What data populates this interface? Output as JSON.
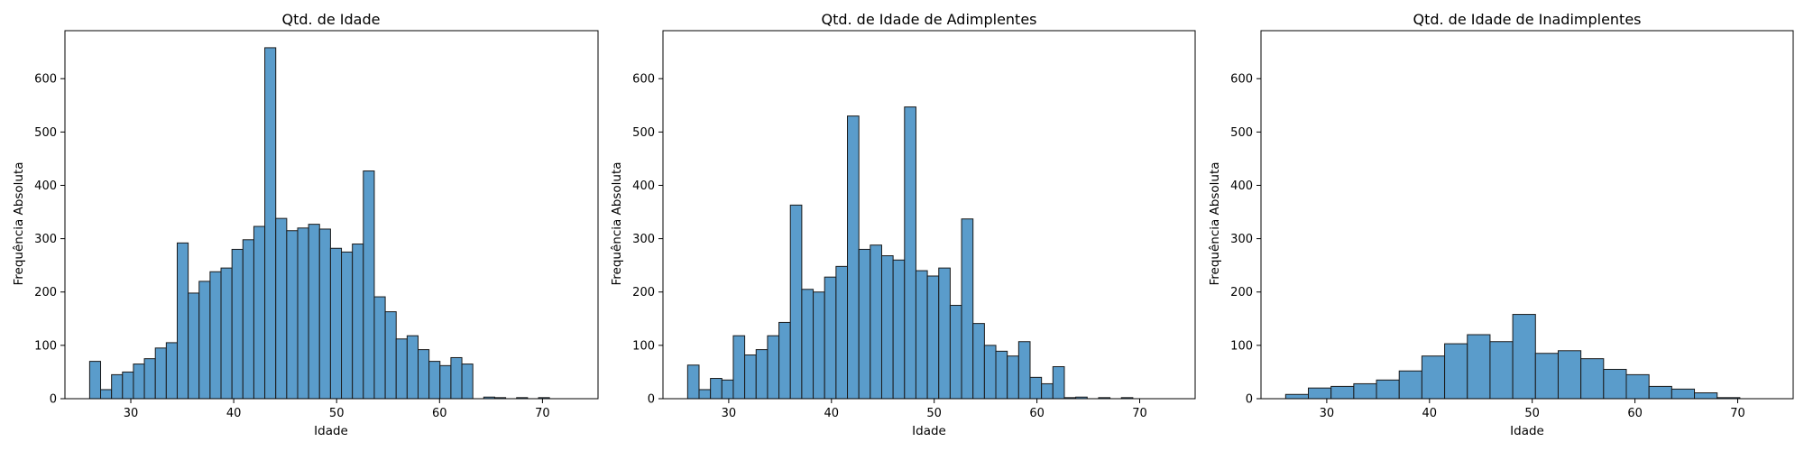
{
  "colors": {
    "bar_fill": "#5a9ccb",
    "bar_edge": "#1a1a1a",
    "axis": "#000000",
    "background": "#ffffff"
  },
  "chart_data": [
    {
      "type": "bar",
      "title": "Qtd. de Idade",
      "xlabel": "Idade",
      "ylabel": "Frequência Absoluta",
      "xlim": [
        23.6,
        75.4
      ],
      "ylim": [
        0,
        690
      ],
      "xticks": [
        30,
        40,
        50,
        60,
        70
      ],
      "yticks": [
        0,
        100,
        200,
        300,
        400,
        500,
        600
      ],
      "bin_start": 26.0,
      "bin_width": 1.0638,
      "values": [
        70,
        17,
        45,
        50,
        65,
        75,
        95,
        105,
        292,
        198,
        220,
        238,
        245,
        280,
        298,
        323,
        658,
        338,
        315,
        320,
        327,
        318,
        282,
        275,
        290,
        427,
        191,
        163,
        112,
        118,
        92,
        70,
        62,
        77,
        65,
        0,
        3,
        2,
        0,
        2,
        0,
        2
      ]
    },
    {
      "type": "bar",
      "title": "Qtd. de Idade de Adimplentes",
      "xlabel": "Idade",
      "ylabel": "Frequência Absoluta",
      "xlim": [
        23.6,
        75.4
      ],
      "ylim": [
        0,
        690
      ],
      "xticks": [
        30,
        40,
        50,
        60,
        70
      ],
      "yticks": [
        0,
        100,
        200,
        300,
        400,
        500,
        600
      ],
      "bin_start": 26.0,
      "bin_width": 1.1111,
      "values": [
        63,
        17,
        38,
        35,
        118,
        82,
        92,
        118,
        143,
        363,
        205,
        200,
        228,
        248,
        530,
        280,
        288,
        268,
        260,
        547,
        240,
        230,
        245,
        175,
        337,
        141,
        100,
        89,
        80,
        107,
        40,
        28,
        60,
        2,
        3,
        0,
        2,
        0,
        2
      ]
    },
    {
      "type": "bar",
      "title": "Qtd. de Idade de Inadimplentes",
      "xlabel": "Idade",
      "ylabel": "Frequência Absoluta",
      "xlim": [
        23.6,
        75.4
      ],
      "ylim": [
        0,
        690
      ],
      "xticks": [
        30,
        40,
        50,
        60,
        70
      ],
      "yticks": [
        0,
        100,
        200,
        300,
        400,
        500,
        600
      ],
      "bin_start": 26.0,
      "bin_width": 2.2105,
      "values": [
        8,
        20,
        23,
        28,
        35,
        52,
        80,
        103,
        120,
        107,
        158,
        85,
        90,
        75,
        55,
        45,
        23,
        18,
        11,
        2
      ]
    }
  ]
}
